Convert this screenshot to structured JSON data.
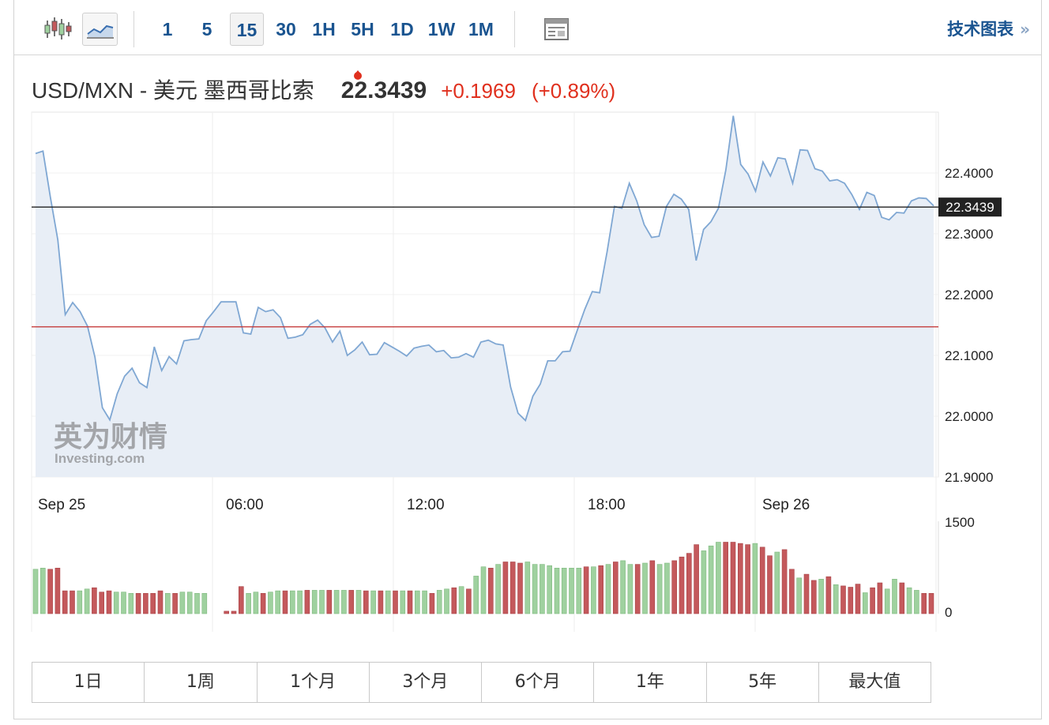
{
  "toolbar": {
    "intervals": [
      "1",
      "5",
      "15",
      "30",
      "1H",
      "5H",
      "1D",
      "1W",
      "1M"
    ],
    "active_interval": "15",
    "tech_chart_label": "技术图表",
    "tech_chart_arrow": "»",
    "icons": [
      "candlestick-icon",
      "line-chart-icon",
      "news-icon"
    ]
  },
  "quote": {
    "name": "USD/MXN - 美元 墨西哥比索",
    "price": "22.3439",
    "change": "+0.1969",
    "change_pct": "(+0.89%)",
    "direction_icon": "up-arrow-icon"
  },
  "watermark": {
    "cn": "英为财情",
    "en": "Investing.com"
  },
  "colors": {
    "line": "#7fa7d3",
    "area": "#e8eef6",
    "up_volume": "#9fd19f",
    "down_volume": "#c4595c",
    "prev_close_line": "#c43b3b",
    "current_price_line": "#222222",
    "price_up": "#e0301e",
    "link": "#1a5490"
  },
  "chart_data": {
    "type": "line",
    "y_ticks": [
      "22.4000",
      "22.3000",
      "22.2000",
      "22.1000",
      "22.0000",
      "21.9000"
    ],
    "ylim": [
      21.9,
      22.5
    ],
    "x_ticks": [
      "Sep 25",
      "06:00",
      "12:00",
      "18:00",
      "Sep 26"
    ],
    "current_price": 22.3439,
    "current_price_label": "22.3439",
    "prev_close": 22.147,
    "series": [
      {
        "values": [
          22.432,
          22.436,
          22.36,
          22.29,
          22.167,
          22.187,
          22.172,
          22.148,
          22.097,
          22.014,
          21.994,
          22.037,
          22.066,
          22.079,
          22.055,
          22.047,
          22.114,
          22.075,
          22.098,
          22.086,
          22.124,
          22.126,
          22.127,
          22.157,
          22.172,
          22.188,
          22.188,
          22.188,
          22.137,
          22.135,
          22.179,
          22.172,
          22.175,
          22.162,
          22.128,
          22.13,
          22.134,
          22.151,
          22.158,
          22.145,
          22.122,
          22.14,
          22.1,
          22.109,
          22.122,
          22.101,
          22.102,
          22.121,
          22.114,
          22.107,
          22.099,
          22.112,
          22.115,
          22.117,
          22.106,
          22.108,
          22.096,
          22.097,
          22.103,
          22.097,
          22.122,
          22.125,
          22.119,
          22.117,
          22.048,
          22.005,
          21.993,
          22.033,
          22.053,
          22.091,
          22.091,
          22.106,
          22.107,
          22.142,
          22.176,
          22.205,
          22.203,
          22.27,
          22.345,
          22.342,
          22.383,
          22.354,
          22.315,
          22.294,
          22.296,
          22.345,
          22.365,
          22.357,
          22.34,
          22.256,
          22.307,
          22.32,
          22.342,
          22.405,
          22.494,
          22.414,
          22.398,
          22.37,
          22.418,
          22.395,
          22.425,
          22.423,
          22.383,
          22.438,
          22.437,
          22.407,
          22.403,
          22.387,
          22.389,
          22.383,
          22.364,
          22.34,
          22.368,
          22.363,
          22.327,
          22.323,
          22.335,
          22.334,
          22.354,
          22.359,
          22.358,
          22.346
        ]
      }
    ],
    "volume": {
      "y_ticks": [
        "1500",
        "0"
      ],
      "ylim": [
        0,
        1500
      ],
      "bars": [
        {
          "v": 720,
          "d": "up"
        },
        {
          "v": 740,
          "d": "up"
        },
        {
          "v": 720,
          "d": "down"
        },
        {
          "v": 740,
          "d": "down"
        },
        {
          "v": 370,
          "d": "down"
        },
        {
          "v": 370,
          "d": "down"
        },
        {
          "v": 370,
          "d": "up"
        },
        {
          "v": 400,
          "d": "up"
        },
        {
          "v": 420,
          "d": "down"
        },
        {
          "v": 350,
          "d": "down"
        },
        {
          "v": 370,
          "d": "down"
        },
        {
          "v": 350,
          "d": "up"
        },
        {
          "v": 350,
          "d": "up"
        },
        {
          "v": 330,
          "d": "up"
        },
        {
          "v": 330,
          "d": "down"
        },
        {
          "v": 330,
          "d": "down"
        },
        {
          "v": 330,
          "d": "down"
        },
        {
          "v": 370,
          "d": "down"
        },
        {
          "v": 330,
          "d": "up"
        },
        {
          "v": 330,
          "d": "down"
        },
        {
          "v": 350,
          "d": "up"
        },
        {
          "v": 350,
          "d": "up"
        },
        {
          "v": 330,
          "d": "up"
        },
        {
          "v": 330,
          "d": "up"
        },
        {
          "v": 0,
          "d": "none"
        },
        {
          "v": 0,
          "d": "none"
        },
        {
          "v": 40,
          "d": "down"
        },
        {
          "v": 40,
          "d": "down"
        },
        {
          "v": 440,
          "d": "down"
        },
        {
          "v": 330,
          "d": "up"
        },
        {
          "v": 350,
          "d": "up"
        },
        {
          "v": 330,
          "d": "down"
        },
        {
          "v": 350,
          "d": "up"
        },
        {
          "v": 370,
          "d": "up"
        },
        {
          "v": 370,
          "d": "down"
        },
        {
          "v": 370,
          "d": "up"
        },
        {
          "v": 370,
          "d": "up"
        },
        {
          "v": 380,
          "d": "down"
        },
        {
          "v": 380,
          "d": "up"
        },
        {
          "v": 380,
          "d": "up"
        },
        {
          "v": 380,
          "d": "down"
        },
        {
          "v": 380,
          "d": "up"
        },
        {
          "v": 380,
          "d": "up"
        },
        {
          "v": 380,
          "d": "down"
        },
        {
          "v": 380,
          "d": "up"
        },
        {
          "v": 370,
          "d": "down"
        },
        {
          "v": 370,
          "d": "up"
        },
        {
          "v": 370,
          "d": "down"
        },
        {
          "v": 370,
          "d": "up"
        },
        {
          "v": 370,
          "d": "down"
        },
        {
          "v": 370,
          "d": "up"
        },
        {
          "v": 370,
          "d": "down"
        },
        {
          "v": 370,
          "d": "up"
        },
        {
          "v": 370,
          "d": "up"
        },
        {
          "v": 330,
          "d": "down"
        },
        {
          "v": 380,
          "d": "up"
        },
        {
          "v": 400,
          "d": "up"
        },
        {
          "v": 420,
          "d": "down"
        },
        {
          "v": 440,
          "d": "up"
        },
        {
          "v": 400,
          "d": "down"
        },
        {
          "v": 610,
          "d": "up"
        },
        {
          "v": 760,
          "d": "up"
        },
        {
          "v": 740,
          "d": "down"
        },
        {
          "v": 800,
          "d": "up"
        },
        {
          "v": 840,
          "d": "down"
        },
        {
          "v": 840,
          "d": "down"
        },
        {
          "v": 820,
          "d": "down"
        },
        {
          "v": 840,
          "d": "up"
        },
        {
          "v": 800,
          "d": "up"
        },
        {
          "v": 800,
          "d": "up"
        },
        {
          "v": 780,
          "d": "up"
        },
        {
          "v": 740,
          "d": "up"
        },
        {
          "v": 740,
          "d": "up"
        },
        {
          "v": 740,
          "d": "up"
        },
        {
          "v": 740,
          "d": "up"
        },
        {
          "v": 760,
          "d": "down"
        },
        {
          "v": 760,
          "d": "up"
        },
        {
          "v": 780,
          "d": "down"
        },
        {
          "v": 800,
          "d": "up"
        },
        {
          "v": 840,
          "d": "down"
        },
        {
          "v": 860,
          "d": "up"
        },
        {
          "v": 800,
          "d": "up"
        },
        {
          "v": 800,
          "d": "down"
        },
        {
          "v": 820,
          "d": "up"
        },
        {
          "v": 860,
          "d": "down"
        },
        {
          "v": 800,
          "d": "up"
        },
        {
          "v": 820,
          "d": "up"
        },
        {
          "v": 860,
          "d": "down"
        },
        {
          "v": 920,
          "d": "down"
        },
        {
          "v": 980,
          "d": "down"
        },
        {
          "v": 1120,
          "d": "down"
        },
        {
          "v": 1020,
          "d": "up"
        },
        {
          "v": 1100,
          "d": "up"
        },
        {
          "v": 1160,
          "d": "up"
        },
        {
          "v": 1160,
          "d": "down"
        },
        {
          "v": 1160,
          "d": "down"
        },
        {
          "v": 1140,
          "d": "down"
        },
        {
          "v": 1120,
          "d": "down"
        },
        {
          "v": 1140,
          "d": "up"
        },
        {
          "v": 1080,
          "d": "down"
        },
        {
          "v": 940,
          "d": "down"
        },
        {
          "v": 1000,
          "d": "up"
        },
        {
          "v": 1040,
          "d": "down"
        },
        {
          "v": 720,
          "d": "down"
        },
        {
          "v": 580,
          "d": "up"
        },
        {
          "v": 640,
          "d": "down"
        },
        {
          "v": 540,
          "d": "down"
        },
        {
          "v": 560,
          "d": "up"
        },
        {
          "v": 600,
          "d": "down"
        },
        {
          "v": 470,
          "d": "up"
        },
        {
          "v": 450,
          "d": "down"
        },
        {
          "v": 430,
          "d": "down"
        },
        {
          "v": 480,
          "d": "down"
        },
        {
          "v": 340,
          "d": "up"
        },
        {
          "v": 420,
          "d": "down"
        },
        {
          "v": 500,
          "d": "down"
        },
        {
          "v": 400,
          "d": "up"
        },
        {
          "v": 560,
          "d": "up"
        },
        {
          "v": 500,
          "d": "down"
        },
        {
          "v": 420,
          "d": "up"
        },
        {
          "v": 380,
          "d": "up"
        },
        {
          "v": 330,
          "d": "down"
        },
        {
          "v": 330,
          "d": "down"
        }
      ]
    }
  },
  "ranges": [
    "1日",
    "1周",
    "1个月",
    "3个月",
    "6个月",
    "1年",
    "5年",
    "最大值"
  ]
}
